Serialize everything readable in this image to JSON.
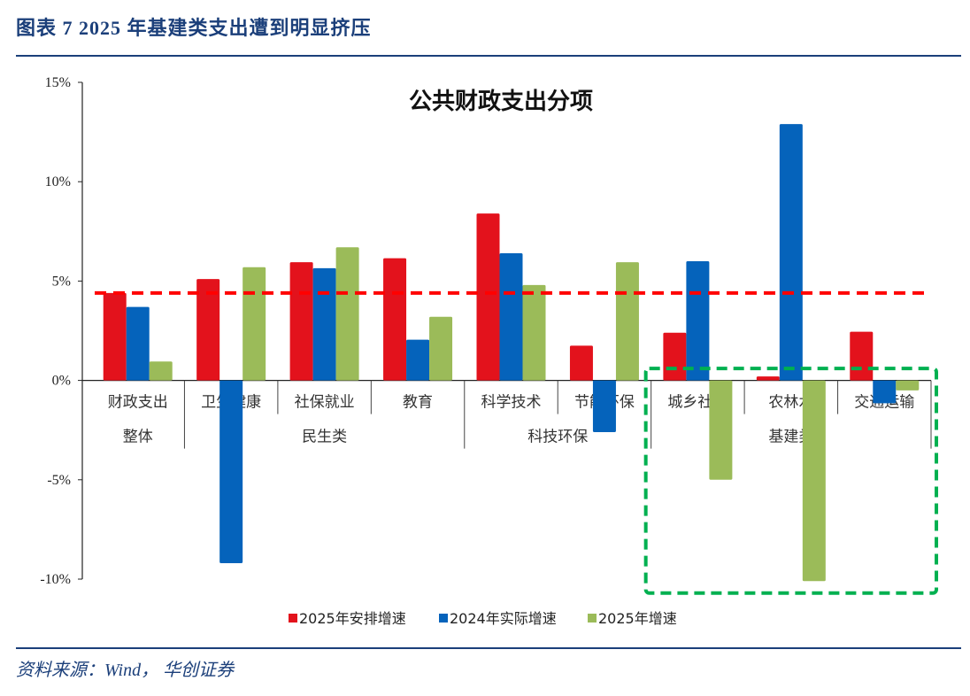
{
  "figure": {
    "title": "图表 7   2025 年基建类支出遭到明显挤压",
    "source": "资料来源：Wind， 华创证券"
  },
  "chart_data": {
    "type": "bar",
    "title": "公共财政支出分项",
    "xlabel": "",
    "ylabel": "",
    "ylim": [
      -10,
      15
    ],
    "yticks": [
      15,
      10,
      5,
      0,
      -5,
      -10
    ],
    "ytick_labels": [
      "15%",
      "10%",
      "5%",
      "0%",
      "-5%",
      "-10%"
    ],
    "categories": [
      "财政支出",
      "卫生健康",
      "社保就业",
      "教育",
      "科学技术",
      "节能环保",
      "城乡社区",
      "农林水",
      "交通运输"
    ],
    "groups": [
      {
        "label": "整体",
        "start": 0,
        "end": 0
      },
      {
        "label": "民生类",
        "start": 1,
        "end": 3
      },
      {
        "label": "科技环保",
        "start": 4,
        "end": 5
      },
      {
        "label": "基建类",
        "start": 6,
        "end": 8
      }
    ],
    "series": [
      {
        "name": "2025年安排增速",
        "color": "#e3121c",
        "values": [
          4.4,
          5.1,
          5.95,
          6.15,
          8.4,
          1.75,
          2.4,
          0.2,
          2.45
        ]
      },
      {
        "name": "2024年实际增速",
        "color": "#0563bb",
        "values": [
          3.7,
          -9.2,
          5.65,
          2.05,
          6.4,
          -2.6,
          6.0,
          12.9,
          -1.15
        ]
      },
      {
        "name": "2025年增速",
        "color": "#9bbb59",
        "values": [
          0.95,
          5.7,
          6.7,
          3.2,
          4.8,
          5.95,
          -5.0,
          -10.1,
          -0.5
        ]
      }
    ],
    "reference_line": {
      "value": 4.4,
      "color": "#ff0000",
      "style": "dashed"
    },
    "highlight_box": {
      "categories": [
        "城乡社区",
        "农林水",
        "交通运输"
      ],
      "color": "#00b050",
      "style": "dashed"
    },
    "legend_position": "bottom",
    "grid": false
  }
}
